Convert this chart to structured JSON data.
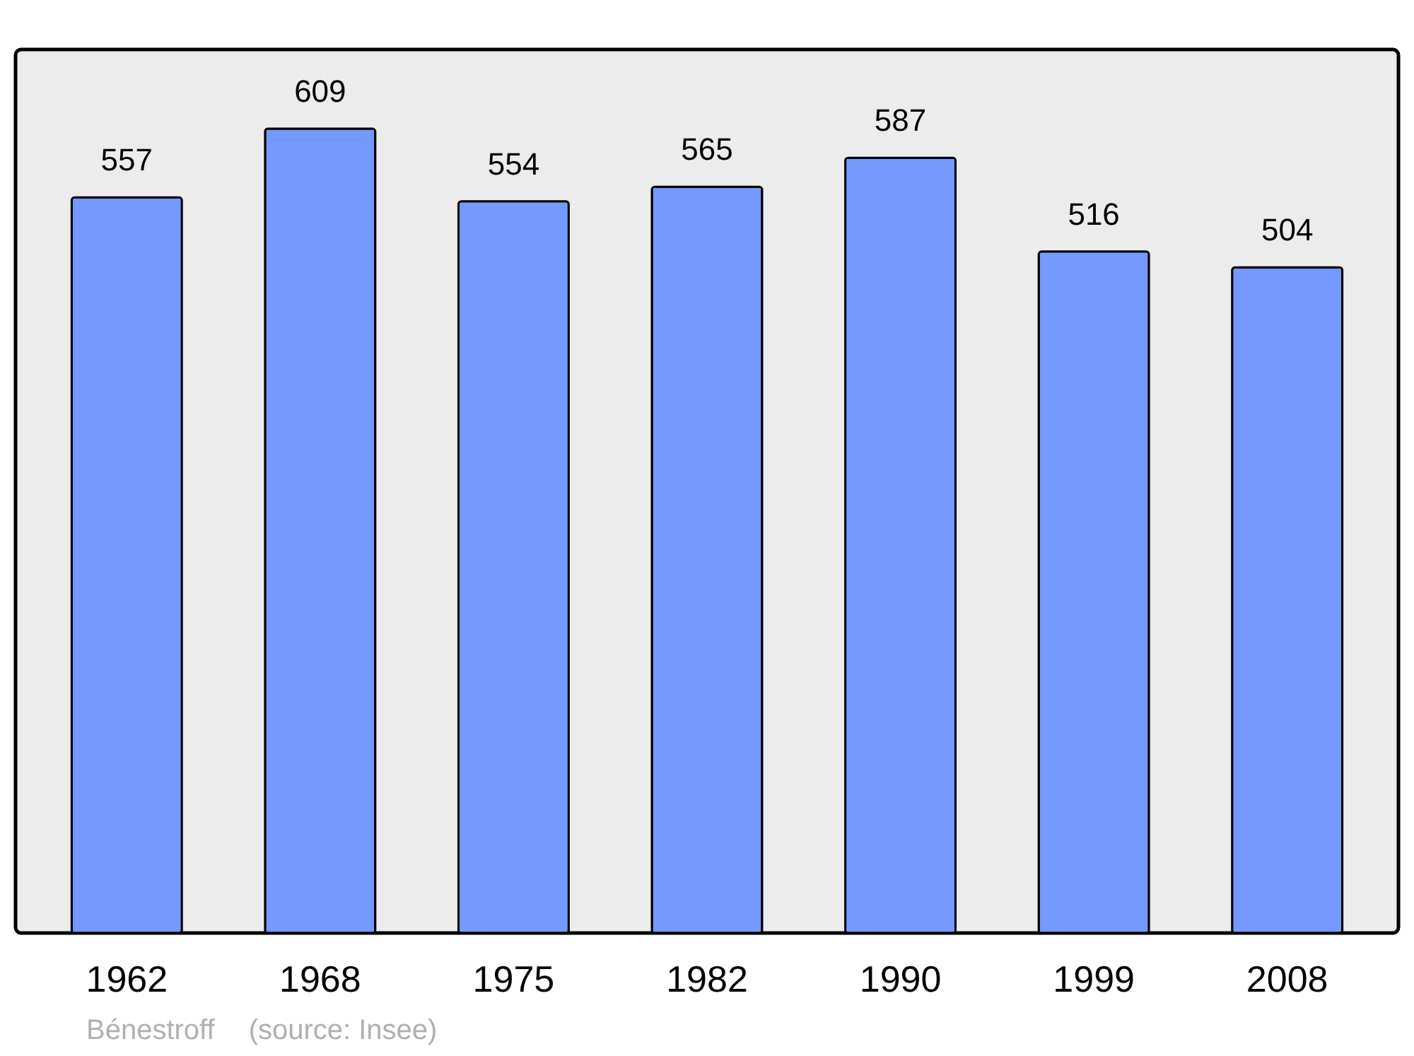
{
  "chart_data": {
    "type": "bar",
    "categories": [
      "1962",
      "1968",
      "1975",
      "1982",
      "1990",
      "1999",
      "2008"
    ],
    "values": [
      557,
      609,
      554,
      565,
      587,
      516,
      504
    ],
    "color": "#7499ff",
    "ylim": [
      0,
      669
    ],
    "data_labels": true,
    "annotations": [
      "Bénestroff",
      "(source: Insee)"
    ]
  }
}
